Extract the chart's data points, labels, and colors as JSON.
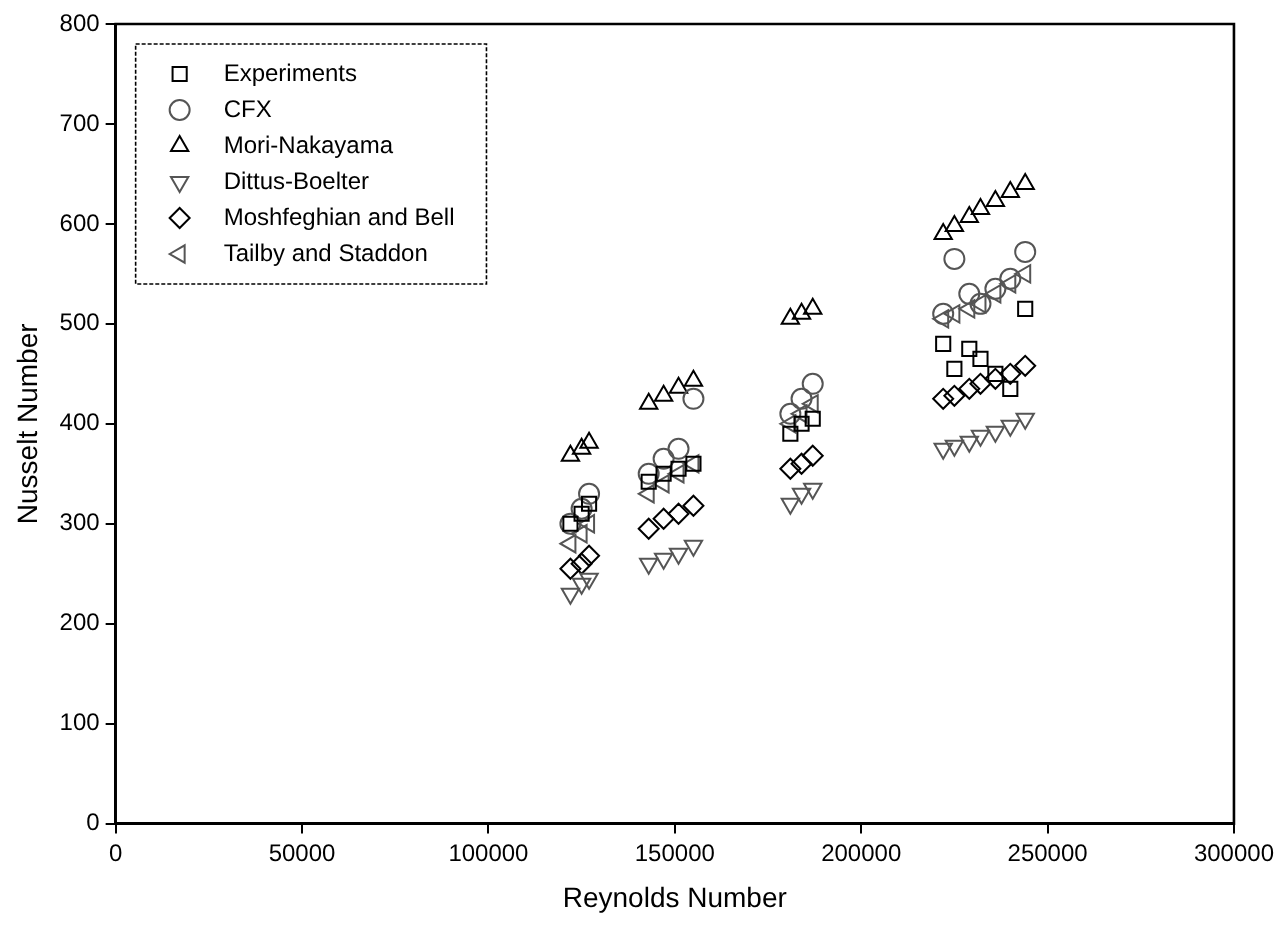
{
  "chart_data": {
    "type": "scatter",
    "xlabel": "Reynolds Number",
    "ylabel": "Nusselt Number",
    "xlim": [
      0,
      300000
    ],
    "xticks": [
      0,
      50000,
      100000,
      150000,
      200000,
      250000,
      300000
    ],
    "ylim": [
      0,
      800
    ],
    "yticks": [
      0,
      100,
      200,
      300,
      400,
      500,
      600,
      700,
      800
    ],
    "grid": false,
    "legend": "top left",
    "series": [
      {
        "name": "Experiments",
        "color": "#000000",
        "marker": "square",
        "x": [
          122000,
          125000,
          127000,
          143000,
          147000,
          151000,
          155000,
          181000,
          184000,
          187000,
          222000,
          225000,
          229000,
          232000,
          236000,
          240000,
          244000
        ],
        "values": [
          300,
          310,
          320,
          342,
          350,
          355,
          360,
          390,
          400,
          405,
          480,
          455,
          475,
          465,
          450,
          435,
          515
        ]
      },
      {
        "name": "CFX",
        "color": "#555555",
        "marker": "circle",
        "x": [
          122000,
          125000,
          127000,
          143000,
          147000,
          151000,
          155000,
          181000,
          184000,
          187000,
          222000,
          225000,
          229000,
          232000,
          236000,
          240000,
          244000
        ],
        "values": [
          300,
          315,
          330,
          350,
          365,
          375,
          425,
          410,
          425,
          440,
          510,
          565,
          530,
          520,
          535,
          545,
          572
        ]
      },
      {
        "name": "Mori-Nakayama",
        "color": "#000000",
        "marker": "triangle",
        "x": [
          122000,
          125000,
          127000,
          143000,
          147000,
          151000,
          155000,
          181000,
          184000,
          187000,
          222000,
          225000,
          229000,
          232000,
          236000,
          240000,
          244000
        ],
        "values": [
          368,
          375,
          381,
          420,
          428,
          436,
          443,
          505,
          510,
          515,
          590,
          598,
          607,
          615,
          623,
          632,
          640
        ]
      },
      {
        "name": "Dittus-Boelter",
        "color": "#555555",
        "marker": "triangle-down",
        "x": [
          122000,
          125000,
          127000,
          143000,
          147000,
          151000,
          155000,
          181000,
          184000,
          187000,
          222000,
          225000,
          229000,
          232000,
          236000,
          240000,
          244000
        ],
        "values": [
          230,
          240,
          245,
          260,
          265,
          270,
          278,
          320,
          330,
          335,
          375,
          378,
          382,
          388,
          392,
          398,
          405
        ]
      },
      {
        "name": "Moshfeghian and Bell",
        "color": "#000000",
        "marker": "diamond",
        "x": [
          122000,
          125000,
          127000,
          143000,
          147000,
          151000,
          155000,
          181000,
          184000,
          187000,
          222000,
          225000,
          229000,
          232000,
          236000,
          240000,
          244000
        ],
        "values": [
          255,
          260,
          268,
          295,
          305,
          310,
          318,
          355,
          360,
          368,
          425,
          428,
          435,
          440,
          445,
          450,
          458
        ]
      },
      {
        "name": "Tailby and Staddon",
        "color": "#555555",
        "marker": "triangle-left",
        "x": [
          122000,
          125000,
          127000,
          143000,
          147000,
          151000,
          155000,
          181000,
          184000,
          187000,
          222000,
          225000,
          229000,
          232000,
          236000,
          240000,
          244000
        ],
        "values": [
          280,
          290,
          300,
          330,
          340,
          350,
          360,
          400,
          410,
          420,
          505,
          510,
          515,
          520,
          530,
          540,
          550
        ]
      }
    ]
  }
}
